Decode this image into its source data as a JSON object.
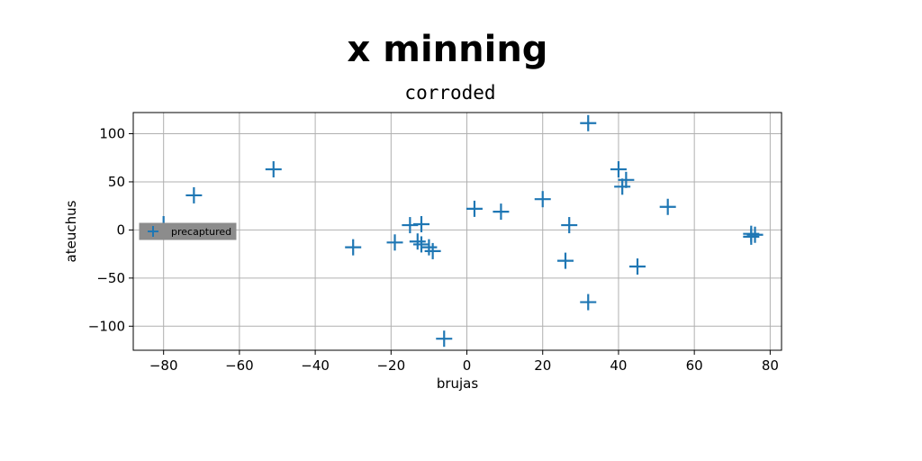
{
  "chart_data": {
    "type": "scatter",
    "title": "x minning",
    "subtitle": "corroded",
    "xlabel": "brujas",
    "ylabel": "ateuchus",
    "xlim": [
      -88,
      83
    ],
    "ylim": [
      -125,
      122
    ],
    "xticks": [
      -80,
      -60,
      -40,
      -20,
      0,
      20,
      40,
      60,
      80
    ],
    "yticks": [
      -100,
      -50,
      0,
      50,
      100
    ],
    "xtick_labels": [
      "−80",
      "−60",
      "−40",
      "−20",
      "0",
      "20",
      "40",
      "60",
      "80"
    ],
    "ytick_labels": [
      "−100",
      "−50",
      "0",
      "50",
      "100"
    ],
    "grid": true,
    "legend": {
      "placement": "center-left",
      "label": "precaptured"
    },
    "color": "#1f77b4",
    "marker": "plus-icon",
    "series": [
      {
        "name": "precaptured",
        "points": [
          [
            -80,
            6
          ],
          [
            -72,
            36
          ],
          [
            -51,
            63
          ],
          [
            -30,
            -18
          ],
          [
            -19,
            -13
          ],
          [
            -15,
            5
          ],
          [
            -13,
            -12
          ],
          [
            -12,
            6
          ],
          [
            -12,
            -15
          ],
          [
            -10,
            -18
          ],
          [
            -9,
            -22
          ],
          [
            -6,
            -113
          ],
          [
            2,
            22
          ],
          [
            9,
            19
          ],
          [
            20,
            32
          ],
          [
            26,
            -32
          ],
          [
            27,
            5
          ],
          [
            32,
            111
          ],
          [
            32,
            -75
          ],
          [
            40,
            63
          ],
          [
            41,
            45
          ],
          [
            42,
            52
          ],
          [
            45,
            -38
          ],
          [
            53,
            24
          ],
          [
            75,
            -4
          ],
          [
            75,
            -7
          ],
          [
            76,
            -5
          ]
        ]
      }
    ]
  }
}
